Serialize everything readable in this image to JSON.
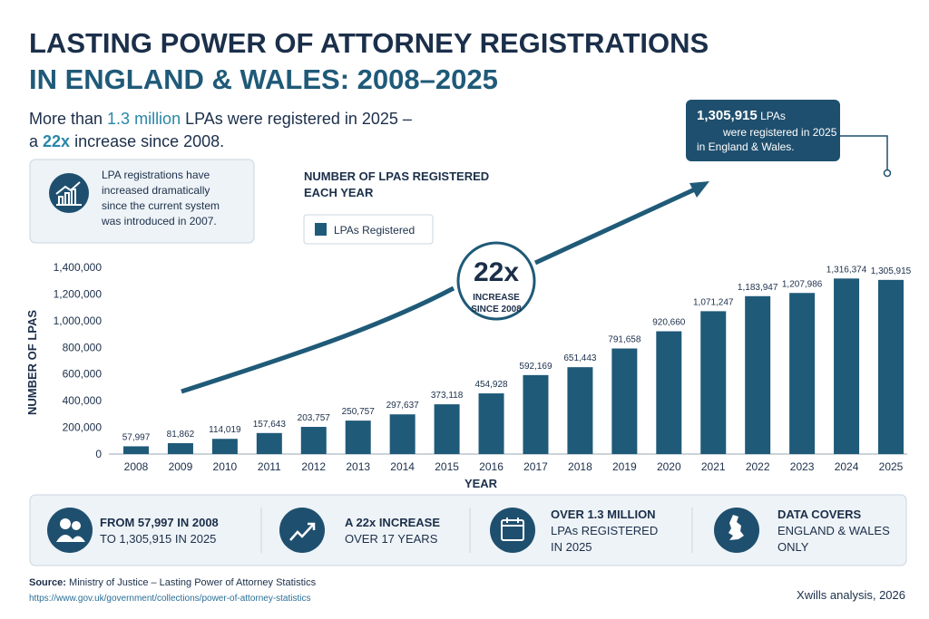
{
  "title": [
    "LASTING POWER OF ATTORNEY REGISTRATIONS",
    "IN ENGLAND & WALES: 2008–2025"
  ],
  "subtitle": {
    "line1": [
      "More than ",
      "1.3 million",
      " LPAs were registered in 2025 –"
    ],
    "line2": [
      "a ",
      "22x",
      " increase since 2008."
    ]
  },
  "info": [
    "LPA registrations have",
    "increased dramatically",
    "since the current system",
    "was introduced in 2007."
  ],
  "chart_data": {
    "type": "bar",
    "heading": [
      "NUMBER OF LPAS REGISTERED",
      "EACH YEAR"
    ],
    "categories": [
      "2008",
      "2009",
      "2010",
      "2011",
      "2012",
      "2013",
      "2014",
      "2015",
      "2016",
      "2017",
      "2018",
      "2019",
      "2020",
      "2021",
      "2022",
      "2023",
      "2024",
      "2025"
    ],
    "series": [
      {
        "name": "LPAs Registered",
        "color": "#1f5a78",
        "values": [
          57997,
          81862,
          114019,
          157643,
          203757,
          250757,
          297637,
          373118,
          454928,
          592169,
          651443,
          791658,
          920660,
          1071247,
          1183947,
          1207986,
          1316374,
          1305915
        ],
        "value_labels": [
          "57,997",
          "81,862",
          "114,019",
          "157,643",
          "203,757",
          "250,757",
          "297,637",
          "373,118",
          "454,928",
          "592,169",
          "651,443",
          "791,658",
          "920,660",
          "1,071,247",
          "1,183,947",
          "1,207,986",
          "1,316,374",
          "1,305,915"
        ]
      }
    ],
    "ylim": [
      0,
      1400000
    ],
    "yticks": [
      0,
      {
        "value": 200000,
        "label": "200,000"
      },
      {
        "value": 400000,
        "label": "400,000"
      },
      {
        "value": 600000,
        "label": "600,000"
      },
      {
        "value": 800000,
        "label": "800,000"
      },
      {
        "value": 1000000,
        "label": "1,000,000"
      },
      {
        "value": 1200000,
        "label": "1,200,000"
      },
      {
        "value": 1400000,
        "label": "1,400,000"
      }
    ],
    "grid": false,
    "xlabel": "YEAR",
    "ylabel": "NUMBER OF LPAS",
    "annotation": {
      "big": "22x",
      "lines": [
        "INCREASE",
        "SINCE 2008"
      ]
    },
    "callout": {
      "number": "1,305,915",
      "unit": " LPAs",
      "lines": [
        "were registered in 2025",
        "in England & Wales."
      ]
    }
  },
  "stats": [
    {
      "lines": [
        "FROM 57,997 IN 2008",
        "TO 1,305,915 IN 2025"
      ]
    },
    {
      "lines": [
        "A 22x INCREASE",
        "OVER 17 YEARS"
      ]
    },
    {
      "lines": [
        "OVER 1.3 MILLION",
        "LPAs REGISTERED",
        "IN 2025"
      ]
    },
    {
      "lines": [
        "DATA COVERS",
        "ENGLAND & WALES",
        "ONLY"
      ]
    }
  ],
  "source": {
    "label": "Source:",
    "text": " Ministry of Justice – Lasting Power of Attorney Statistics",
    "url": "https://www.gov.uk/government/collections/power-of-attorney-statistics"
  },
  "credit": "Xwills analysis, 2026"
}
